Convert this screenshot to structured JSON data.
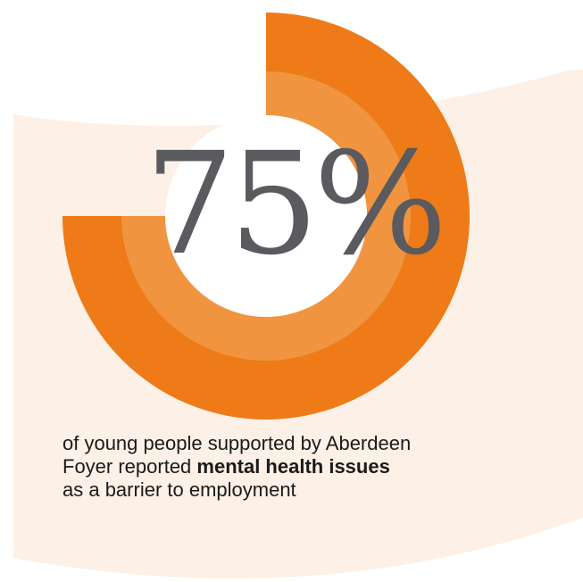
{
  "chart_data": {
    "type": "pie",
    "value": 75,
    "value_text": "75%",
    "caption": {
      "line1": "of young people supported by Aberdeen",
      "line2_before": "Foyer reported ",
      "line2_bold": "mental health issues",
      "line3": "as a barrier to employment"
    }
  },
  "colors": {
    "background_band": "#fdf0e6",
    "ring_outer": "#ee7a18",
    "ring_inner": "#f1943f",
    "center": "#ffffff",
    "value_text": "#5a5a5f",
    "caption_text": "#1a1a1a"
  }
}
